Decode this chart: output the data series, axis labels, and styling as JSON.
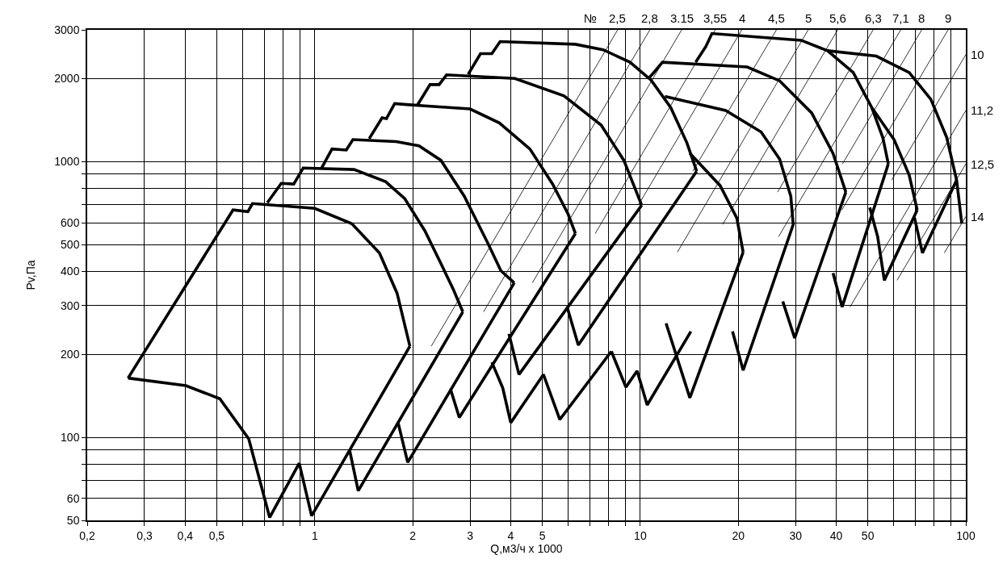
{
  "chart_data": {
    "type": "line",
    "xlabel": "Q,м3/ч x 1000",
    "ylabel": "Pv,Па",
    "annotations": [
      "№"
    ],
    "log": "xy",
    "grid": true,
    "legend": false,
    "marker": "none",
    "line_style": "solid",
    "xlim": [
      0.2,
      100
    ],
    "ylim": [
      50,
      3000
    ],
    "xticks": [
      {
        "value": 0.2,
        "label": "0,2"
      },
      {
        "value": 0.3,
        "label": "0,3"
      },
      {
        "value": 0.4,
        "label": "0,4"
      },
      {
        "value": 0.5,
        "label": "0,5"
      },
      {
        "value": 0.6,
        "label": null
      },
      {
        "value": 0.7,
        "label": null
      },
      {
        "value": 0.8,
        "label": null
      },
      {
        "value": 0.9,
        "label": null
      },
      1,
      2,
      3,
      4,
      5,
      {
        "value": 6,
        "label": null
      },
      {
        "value": 7,
        "label": null
      },
      {
        "value": 8,
        "label": null
      },
      {
        "value": 9,
        "label": null
      },
      10,
      20,
      30,
      40,
      50,
      {
        "value": 60,
        "label": null
      },
      {
        "value": 70,
        "label": null
      },
      {
        "value": 80,
        "label": null
      },
      {
        "value": 90,
        "label": null
      },
      100
    ],
    "yticks": [
      50,
      60,
      {
        "value": 70,
        "label": null
      },
      {
        "value": 80,
        "label": null
      },
      {
        "value": 90,
        "label": null
      },
      100,
      200,
      300,
      400,
      500,
      600,
      {
        "value": 700,
        "label": null
      },
      {
        "value": 800,
        "label": null
      },
      {
        "value": 900,
        "label": null
      },
      1000,
      2000,
      3000
    ],
    "series": [
      {
        "color": "#000000",
        "x": [
          0.267,
          0.561,
          0.623,
          0.644,
          1.0,
          1.3,
          1.58,
          1.79,
          1.96
        ],
        "values": [
          164,
          667,
          658,
          704,
          676,
          595,
          466,
          333,
          214
        ]
      },
      {
        "color": "#000000",
        "x": [
          0.267,
          0.402,
          0.511,
          0.627,
          0.727,
          0.896,
          0.978,
          1.96
        ],
        "values": [
          164,
          154,
          138,
          98.7,
          51.2,
          80.6,
          51.9,
          214
        ]
      },
      {
        "color": "#000000",
        "x": [
          0.715,
          0.789,
          0.862,
          0.921,
          1.32,
          1.65,
          1.89,
          2.18,
          2.44,
          2.67,
          2.85
        ],
        "values": [
          709,
          833,
          828,
          947,
          935,
          845,
          733,
          560,
          427,
          342,
          285
        ]
      },
      {
        "color": "#000000",
        "x": [
          1.28,
          1.36,
          2.85
        ],
        "values": [
          89.8,
          64,
          285
        ]
      },
      {
        "color": "#000000",
        "x": [
          1.05,
          1.13,
          1.25,
          1.31,
          1.78,
          2.09,
          2.44,
          2.88,
          3.4,
          3.73,
          4.1
        ],
        "values": [
          947,
          1110,
          1100,
          1200,
          1180,
          1140,
          1010,
          748,
          506,
          402,
          363
        ]
      },
      {
        "color": "#000000",
        "x": [
          1.8,
          1.93,
          4.1
        ],
        "values": [
          114,
          81.1,
          363
        ]
      },
      {
        "color": "#000000",
        "x": [
          1.47,
          1.61,
          1.66,
          1.76,
          2.18,
          3,
          3.69,
          4.58,
          5.38,
          6.0,
          6.32
        ],
        "values": [
          1210,
          1440,
          1430,
          1620,
          1590,
          1550,
          1380,
          1110,
          828,
          645,
          548
        ]
      },
      {
        "color": "#000000",
        "x": [
          2.61,
          2.78,
          6.32
        ],
        "values": [
          150,
          118,
          548
        ]
      },
      {
        "color": "#000000",
        "x": [
          2.06,
          2.26,
          2.41,
          2.54,
          4.12,
          5.83,
          7.58,
          8.9,
          10.1
        ],
        "values": [
          1590,
          1900,
          1900,
          2060,
          2000,
          1730,
          1355,
          1010,
          694
        ]
      },
      {
        "color": "#000000",
        "x": [
          3.95,
          4.24,
          10.1
        ],
        "values": [
          237,
          169,
          694
        ]
      },
      {
        "color": "#000000",
        "x": [
          2.96,
          3.23,
          3.5,
          3.71,
          6.32,
          7.69,
          9.3,
          10.8,
          12.4,
          13.9,
          14.9
        ],
        "values": [
          2070,
          2460,
          2460,
          2720,
          2660,
          2540,
          2290,
          1970,
          1570,
          1170,
          922
        ]
      },
      {
        "color": "#000000",
        "x": [
          5.96,
          6.45,
          14.9
        ],
        "values": [
          297,
          216,
          922
        ]
      },
      {
        "color": "#000000",
        "x": [
          11.9,
          18.3,
          23.5,
          26.8,
          29,
          29.5,
          20.7,
          19.2
        ],
        "values": [
          1720,
          1530,
          1280,
          1020,
          748,
          591,
          175,
          242
        ]
      },
      {
        "color": "#000000",
        "x": [
          10.6,
          11,
          11.7,
          21.3,
          26.8,
          33.6,
          39.1,
          42.8
        ],
        "values": [
          2000,
          2100,
          2290,
          2200,
          1960,
          1500,
          1070,
          774
        ]
      },
      {
        "color": "#000000",
        "x": [
          27.4,
          29.8,
          42.8
        ],
        "values": [
          311,
          229,
          774
        ]
      },
      {
        "color": "#000000",
        "x": [
          14.8,
          15.9,
          16.6,
          31.2,
          37.6,
          45.1,
          51.4,
          55.6,
          57.8
        ],
        "values": [
          2290,
          2610,
          2910,
          2750,
          2520,
          2100,
          1570,
          1220,
          980
        ]
      },
      {
        "color": "#000000",
        "x": [
          39.1,
          41.7,
          57.8
        ],
        "values": [
          394,
          297,
          980
        ]
      },
      {
        "color": "#000000",
        "x": [
          37.6,
          53.1,
          67,
          78.1,
          87.4,
          93.7,
          97.2
        ],
        "values": [
          2520,
          2410,
          2100,
          1680,
          1220,
          856,
          595
        ]
      },
      {
        "color": "#000000",
        "x": [
          69.6,
          73.6,
          93.7
        ],
        "values": [
          623,
          466,
          856
        ]
      },
      {
        "color": "#000000",
        "x": [
          14.2,
          17.6,
          19.8,
          20.7
        ],
        "values": [
          1070,
          817,
          623,
          469
        ]
      },
      {
        "color": "#000000",
        "x": [
          12.0,
          14.2,
          20.7
        ],
        "values": [
          259,
          139,
          469
        ]
      },
      {
        "color": "#000000",
        "x": [
          51.4,
          60.2,
          67.0,
          70.9
        ],
        "values": [
          1570,
          1200,
          892,
          667
        ]
      },
      {
        "color": "#000000",
        "x": [
          50.7,
          53.6,
          56.2,
          70.9
        ],
        "values": [
          681,
          534,
          371,
          667
        ]
      },
      {
        "color": "#000000",
        "x": [
          3.5,
          3.78,
          4.0,
          5.04,
          5.66,
          8.15
        ],
        "values": [
          187,
          151,
          113,
          169,
          116,
          205
        ]
      },
      {
        "color": "#000000",
        "x": [
          8.15,
          9.03,
          9.78,
          10.5,
          14.3
        ],
        "values": [
          205,
          152,
          174,
          131,
          242
        ]
      },
      {
        "name": "2,5",
        "color": "#000000",
        "x": [
          2.28,
          8.52
        ],
        "values": [
          214,
          3000
        ]
      },
      {
        "name": "2,8",
        "color": "#000000",
        "x": [
          3.3,
          10.7
        ],
        "values": [
          285,
          3000
        ]
      },
      {
        "name": "3.15",
        "color": "#000000",
        "x": [
          4.66,
          13.4
        ],
        "values": [
          363,
          3000
        ]
      },
      {
        "name": "3,55",
        "color": "#000000",
        "x": [
          7.27,
          17
        ],
        "values": [
          548,
          3000
        ]
      },
      {
        "name": "4",
        "color": "#000000",
        "x": [
          9.86,
          20.5
        ],
        "values": [
          694,
          3000
        ]
      },
      {
        "name": "4,5",
        "color": "#000000",
        "x": [
          14.5,
          26.2
        ],
        "values": [
          922,
          3000
        ]
      },
      {
        "name": "5",
        "color": "#000000",
        "x": [
          13.0,
          32.8
        ],
        "values": [
          469,
          3000
        ]
      },
      {
        "name": "5,6",
        "color": "#000000",
        "x": [
          17.9,
          40.4
        ],
        "values": [
          591,
          3000
        ]
      },
      {
        "name": "6,3",
        "color": "#000000",
        "x": [
          26.4,
          51.9
        ],
        "values": [
          774,
          3000
        ]
      },
      {
        "name": "7,1",
        "color": "#000000",
        "x": [
          26.6,
          63.1
        ],
        "values": [
          534,
          3000
        ]
      },
      {
        "name": "8",
        "color": "#000000",
        "x": [
          41.8,
          73.2
        ],
        "values": [
          980,
          3000
        ]
      },
      {
        "name": "9",
        "color": "#000000",
        "x": [
          41.6,
          88.2
        ],
        "values": [
          667,
          3000
        ]
      },
      {
        "name": "10",
        "color": "#000000",
        "x": [
          59.2,
          100
        ],
        "values": [
          856,
          2440
        ]
      },
      {
        "name": "11,2",
        "color": "#000000",
        "x": [
          44.1,
          100
        ],
        "values": [
          297,
          1530
        ]
      },
      {
        "name": "12,5",
        "color": "#000000",
        "x": [
          61.5,
          100
        ],
        "values": [
          371,
          980
        ]
      },
      {
        "name": "14",
        "color": "#000000",
        "x": [
          85.9,
          100
        ],
        "values": [
          466,
          632
        ]
      }
    ]
  }
}
